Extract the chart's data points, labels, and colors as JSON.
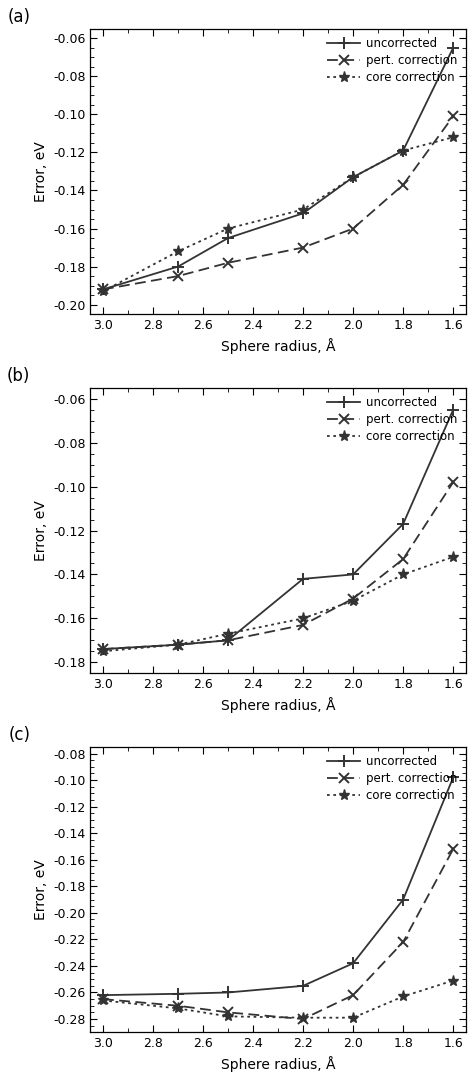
{
  "x": [
    3.0,
    2.7,
    2.5,
    2.2,
    2.0,
    1.8,
    1.6
  ],
  "panels": [
    {
      "label": "(a)",
      "ylim": [
        -0.205,
        -0.055
      ],
      "yticks": [
        -0.2,
        -0.18,
        -0.16,
        -0.14,
        -0.12,
        -0.1,
        -0.08,
        -0.06
      ],
      "uncorrected": [
        -0.192,
        -0.18,
        -0.165,
        -0.152,
        -0.133,
        -0.119,
        -0.065
      ],
      "pert_correction": [
        -0.192,
        -0.185,
        -0.178,
        -0.17,
        -0.16,
        -0.137,
        -0.101
      ],
      "core_correction": [
        -0.193,
        -0.172,
        -0.16,
        -0.15,
        -0.133,
        -0.119,
        -0.112
      ]
    },
    {
      "label": "(b)",
      "ylim": [
        -0.185,
        -0.055
      ],
      "yticks": [
        -0.18,
        -0.16,
        -0.14,
        -0.12,
        -0.1,
        -0.08,
        -0.06
      ],
      "uncorrected": [
        -0.174,
        -0.172,
        -0.17,
        -0.142,
        -0.14,
        -0.117,
        -0.065
      ],
      "pert_correction": [
        -0.174,
        -0.172,
        -0.17,
        -0.163,
        -0.151,
        -0.133,
        -0.098
      ],
      "core_correction": [
        -0.175,
        -0.172,
        -0.167,
        -0.16,
        -0.152,
        -0.14,
        -0.132
      ]
    },
    {
      "label": "(c)",
      "ylim": [
        -0.29,
        -0.075
      ],
      "yticks": [
        -0.28,
        -0.26,
        -0.24,
        -0.22,
        -0.2,
        -0.18,
        -0.16,
        -0.14,
        -0.12,
        -0.1,
        -0.08
      ],
      "uncorrected": [
        -0.262,
        -0.261,
        -0.26,
        -0.255,
        -0.238,
        -0.19,
        -0.098
      ],
      "pert_correction": [
        -0.265,
        -0.27,
        -0.275,
        -0.28,
        -0.262,
        -0.222,
        -0.152
      ],
      "core_correction": [
        -0.266,
        -0.272,
        -0.278,
        -0.279,
        -0.279,
        -0.263,
        -0.251
      ]
    }
  ],
  "xlabel": "Sphere radius, Å",
  "ylabel": "Error, eV",
  "line_color": "#333333",
  "legend_labels": [
    "uncorrected",
    "pert. correction",
    "core correction"
  ]
}
